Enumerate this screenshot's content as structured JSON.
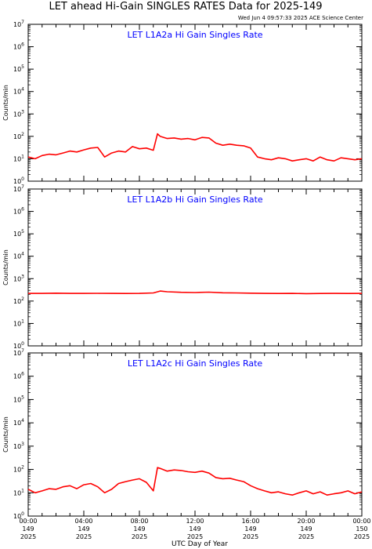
{
  "page_title": "LET ahead Hi-Gain SINGLES RATES Data for 2025-149",
  "timestamp": "Wed Jun  4 09:57:33 2025 ACE Science Center",
  "xlabel": "UTC Day of Year",
  "colors": {
    "series": "#ff0000",
    "panel_label": "#0000ff",
    "axes": "#000000",
    "background": "#ffffff"
  },
  "chart_data": [
    {
      "type": "line",
      "title": "LET L1A2a Hi Gain Singles Rate",
      "ylabel": "Counts/min",
      "yscale": "log",
      "ylim": [
        1,
        10000000
      ],
      "yticks": [
        {
          "m": "0"
        },
        {
          "m": "1"
        },
        {
          "m": "2"
        },
        {
          "m": "3"
        },
        {
          "m": "4"
        },
        {
          "m": "5"
        },
        {
          "m": "6"
        },
        {
          "m": "7"
        }
      ],
      "xlim": [
        0,
        24
      ],
      "series": [
        {
          "x": [
            0,
            0.5,
            1,
            1.5,
            2,
            2.5,
            3,
            3.5,
            4,
            4.5,
            5,
            5.5,
            6,
            6.5,
            7,
            7.5,
            8,
            8.5,
            9,
            9.3,
            9.5,
            10,
            10.5,
            11,
            11.5,
            12,
            12.5,
            13,
            13.5,
            14,
            14.5,
            15,
            15.5,
            16,
            16.5,
            17,
            17.5,
            18,
            18.5,
            19,
            19.5,
            20,
            20.5,
            21,
            21.5,
            22,
            22.5,
            23,
            23.5,
            24
          ],
          "values": [
            12,
            10,
            14,
            16,
            15,
            18,
            22,
            20,
            25,
            30,
            32,
            12,
            18,
            22,
            20,
            35,
            28,
            30,
            24,
            130,
            100,
            80,
            85,
            75,
            80,
            70,
            90,
            85,
            50,
            40,
            45,
            40,
            38,
            30,
            12,
            10,
            9,
            11,
            10,
            8,
            9,
            10,
            8,
            12,
            9,
            8,
            11,
            10,
            9,
            10
          ]
        }
      ]
    },
    {
      "type": "line",
      "title": "LET L1A2b Hi Gain Singles Rate",
      "ylabel": "Counts/min",
      "yscale": "log",
      "ylim": [
        1,
        10000000
      ],
      "yticks": [
        {
          "m": "0"
        },
        {
          "m": "1"
        },
        {
          "m": "2"
        },
        {
          "m": "3"
        },
        {
          "m": "4"
        },
        {
          "m": "5"
        },
        {
          "m": "6"
        },
        {
          "m": "7"
        }
      ],
      "xlim": [
        0,
        24
      ],
      "series": [
        {
          "x": [
            0,
            1,
            2,
            3,
            4,
            5,
            6,
            7,
            8,
            9,
            9.5,
            10,
            11,
            12,
            13,
            14,
            15,
            16,
            17,
            18,
            19,
            20,
            21,
            22,
            23,
            24
          ],
          "values": [
            220,
            220,
            225,
            220,
            220,
            222,
            220,
            218,
            220,
            230,
            280,
            260,
            245,
            240,
            250,
            235,
            230,
            225,
            220,
            218,
            220,
            215,
            218,
            220,
            218,
            220
          ]
        }
      ]
    },
    {
      "type": "line",
      "title": "LET L1A2c Hi Gain Singles Rate",
      "ylabel": "Counts/min",
      "yscale": "log",
      "ylim": [
        1,
        10000000
      ],
      "yticks": [
        {
          "m": "0"
        },
        {
          "m": "1"
        },
        {
          "m": "2"
        },
        {
          "m": "3"
        },
        {
          "m": "4"
        },
        {
          "m": "5"
        },
        {
          "m": "6"
        },
        {
          "m": "7"
        }
      ],
      "xlim": [
        0,
        24
      ],
      "series": [
        {
          "x": [
            0,
            0.5,
            1,
            1.5,
            2,
            2.5,
            3,
            3.5,
            4,
            4.5,
            5,
            5.5,
            6,
            6.5,
            7,
            7.5,
            8,
            8.5,
            9,
            9.3,
            9.5,
            10,
            10.5,
            11,
            11.5,
            12,
            12.5,
            13,
            13.5,
            14,
            14.5,
            15,
            15.5,
            16,
            16.5,
            17,
            17.5,
            18,
            18.5,
            19,
            19.5,
            20,
            20.5,
            21,
            21.5,
            22,
            22.5,
            23,
            23.5,
            24
          ],
          "values": [
            14,
            10,
            12,
            15,
            14,
            18,
            20,
            15,
            22,
            25,
            18,
            10,
            14,
            25,
            30,
            35,
            40,
            28,
            12,
            120,
            110,
            85,
            95,
            90,
            80,
            75,
            85,
            70,
            45,
            40,
            42,
            35,
            30,
            20,
            15,
            12,
            10,
            11,
            9,
            8,
            10,
            12,
            9,
            11,
            8,
            9,
            10,
            12,
            9,
            11
          ]
        }
      ]
    }
  ],
  "x_ticks": [
    {
      "h": 0,
      "time": "00:00",
      "doy": "149",
      "year": "2025"
    },
    {
      "h": 4,
      "time": "04:00",
      "doy": "149",
      "year": "2025"
    },
    {
      "h": 8,
      "time": "08:00",
      "doy": "149",
      "year": "2025"
    },
    {
      "h": 12,
      "time": "12:00",
      "doy": "149",
      "year": "2025"
    },
    {
      "h": 16,
      "time": "16:00",
      "doy": "149",
      "year": "2025"
    },
    {
      "h": 20,
      "time": "20:00",
      "doy": "149",
      "year": "2025"
    },
    {
      "h": 24,
      "time": "00:00",
      "doy": "150",
      "year": "2025"
    }
  ]
}
